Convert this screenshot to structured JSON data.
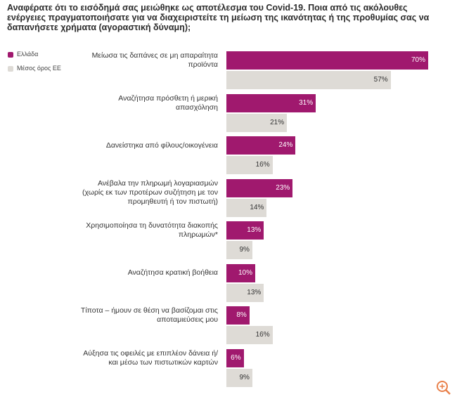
{
  "chart_data": {
    "type": "bar",
    "orientation": "horizontal",
    "title": "Αναφέρατε ότι το εισόδημά σας μειώθηκε ως αποτέλεσμα του Covid-19. Ποια από τις ακόλουθες ενέργειες πραγματοποιήσατε για να διαχειριστείτε τη μείωση της ικανότητας ή της προθυμίας σας να δαπανήσετε χρήματα (αγοραστική δύναμη);",
    "categories": [
      "Μείωσα τις δαπάνες σε μη απαραίτητα προϊόντα",
      "Αναζήτησα πρόσθετη ή μερική απασχόληση",
      "Δανείστηκα από φίλους/οικογένεια",
      "Ανέβαλα την πληρωμή λογαριασμών (χωρίς εκ των προτέρων συζήτηση με τον προμηθευτή ή τον πιστωτή)",
      "Χρησιμοποίησα τη δυνατότητα διακοπής πληρωμών*",
      "Αναζήτησα κρατική βοήθεια",
      "Τίποτα – ήμουν σε θέση να βασίζομαι στις αποταμιεύσεις μου",
      "Αύξησα τις οφειλές με επιπλέον δάνεια ή/και μέσω των πιστωτικών καρτών"
    ],
    "series": [
      {
        "name": "Ελλάδα",
        "color": "#a0196e",
        "values": [
          70,
          31,
          24,
          23,
          13,
          10,
          8,
          6
        ],
        "value_labels": [
          "70%",
          "31%",
          "24%",
          "23%",
          "13%",
          "10%",
          "8%",
          "6%"
        ]
      },
      {
        "name": "Μέσος όρος ΕΕ",
        "color": "#dedbd6",
        "values": [
          57,
          21,
          16,
          14,
          9,
          13,
          16,
          9
        ],
        "value_labels": [
          "57%",
          "21%",
          "16%",
          "14%",
          "9%",
          "13%",
          "16%",
          "9%"
        ]
      }
    ],
    "legend": "top-left"
  }
}
